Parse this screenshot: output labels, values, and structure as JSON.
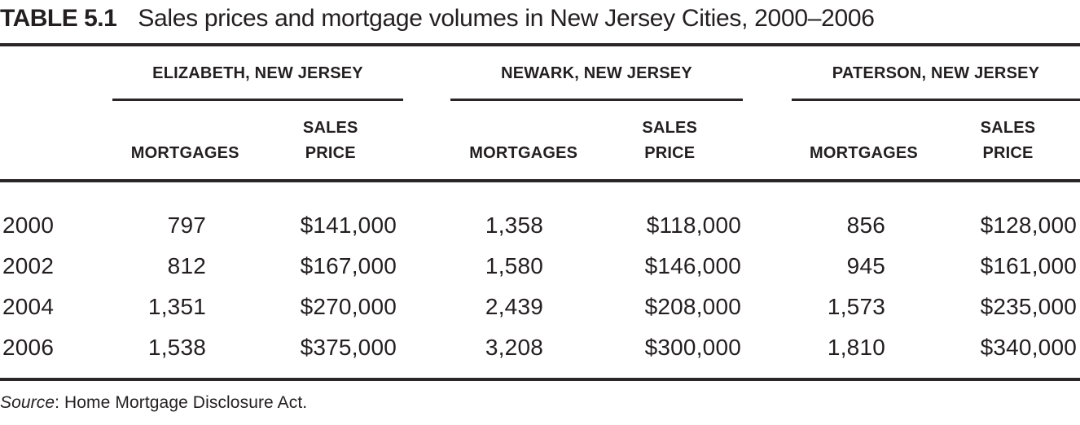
{
  "title": {
    "label": "TABLE 5.1",
    "text": "Sales prices and mortgage volumes in New Jersey Cities, 2000–2006"
  },
  "table": {
    "groups": [
      {
        "city": "ELIZABETH, NEW JERSEY",
        "mortgages_label": "MORTGAGES",
        "sales_label_line1": "SALES",
        "sales_label_line2": "PRICE"
      },
      {
        "city": "NEWARK, NEW JERSEY",
        "mortgages_label": "MORTGAGES",
        "sales_label_line1": "SALES",
        "sales_label_line2": "PRICE"
      },
      {
        "city": "PATERSON, NEW JERSEY",
        "mortgages_label": "MORTGAGES",
        "sales_label_line1": "SALES",
        "sales_label_line2": "PRICE"
      }
    ],
    "rows": [
      {
        "year": "2000",
        "values": [
          "797",
          "$141,000",
          "1,358",
          "$118,000",
          "856",
          "$128,000"
        ]
      },
      {
        "year": "2002",
        "values": [
          "812",
          "$167,000",
          "1,580",
          "$146,000",
          "945",
          "$161,000"
        ]
      },
      {
        "year": "2004",
        "values": [
          "1,351",
          "$270,000",
          "2,439",
          "$208,000",
          "1,573",
          "$235,000"
        ]
      },
      {
        "year": "2006",
        "values": [
          "1,538",
          "$375,000",
          "3,208",
          "$300,000",
          "1,810",
          "$340,000"
        ]
      }
    ]
  },
  "source": {
    "label": "Source",
    "text": ": Home Mortgage Disclosure Act."
  },
  "colors": {
    "text": "#231f20",
    "rule": "#2a2627",
    "background": "#ffffff"
  },
  "chart_data": {
    "type": "table",
    "title": "TABLE 5.1 Sales prices and mortgage volumes in New Jersey Cities, 2000–2006",
    "categories": [
      "2000",
      "2002",
      "2004",
      "2006"
    ],
    "series": [
      {
        "name": "Elizabeth, New Jersey — Mortgages",
        "values": [
          797,
          812,
          1351,
          1538
        ]
      },
      {
        "name": "Elizabeth, New Jersey — Sales Price",
        "values": [
          141000,
          167000,
          270000,
          375000
        ]
      },
      {
        "name": "Newark, New Jersey — Mortgages",
        "values": [
          1358,
          1580,
          2439,
          3208
        ]
      },
      {
        "name": "Newark, New Jersey — Sales Price",
        "values": [
          118000,
          146000,
          208000,
          300000
        ]
      },
      {
        "name": "Paterson, New Jersey — Mortgages",
        "values": [
          856,
          945,
          1573,
          1810
        ]
      },
      {
        "name": "Paterson, New Jersey — Sales Price",
        "values": [
          128000,
          161000,
          235000,
          340000
        ]
      }
    ],
    "source": "Home Mortgage Disclosure Act."
  }
}
